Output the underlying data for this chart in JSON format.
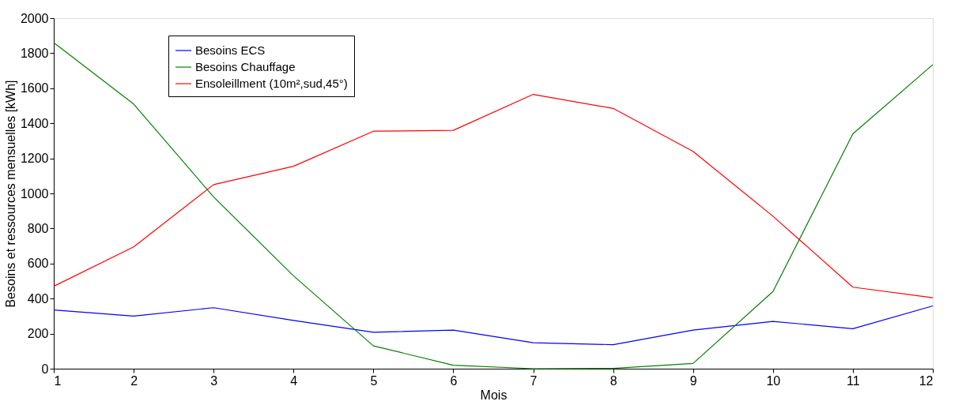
{
  "chart_data": {
    "type": "line",
    "xlabel": "Mois",
    "ylabel": "Besoins et ressources mensuelles [kWh]",
    "x": [
      1,
      2,
      3,
      4,
      5,
      6,
      7,
      8,
      9,
      10,
      11,
      12
    ],
    "series": [
      {
        "name": "Besoins ECS",
        "color": "#0000ff",
        "values": [
          335,
          300,
          348,
          275,
          208,
          220,
          148,
          137,
          220,
          270,
          228,
          358
        ]
      },
      {
        "name": "Besoins Chauffage",
        "color": "#008000",
        "values": [
          1860,
          1510,
          980,
          530,
          130,
          20,
          0,
          2,
          30,
          440,
          1340,
          1735
        ]
      },
      {
        "name": "Ensoleillment (10m²,sud,45°)",
        "color": "#ff0000",
        "values": [
          470,
          695,
          1050,
          1155,
          1355,
          1360,
          1565,
          1485,
          1240,
          870,
          465,
          405
        ]
      }
    ],
    "xlim": [
      1,
      12
    ],
    "xticks": [
      1,
      2,
      3,
      4,
      5,
      6,
      7,
      8,
      9,
      10,
      11,
      12
    ],
    "ylim": [
      0,
      2000
    ],
    "yticks": [
      0,
      200,
      400,
      600,
      800,
      1000,
      1200,
      1400,
      1600,
      1800,
      2000
    ],
    "grid": false,
    "legend": "top left",
    "marker": "none",
    "line_style": "solid"
  }
}
